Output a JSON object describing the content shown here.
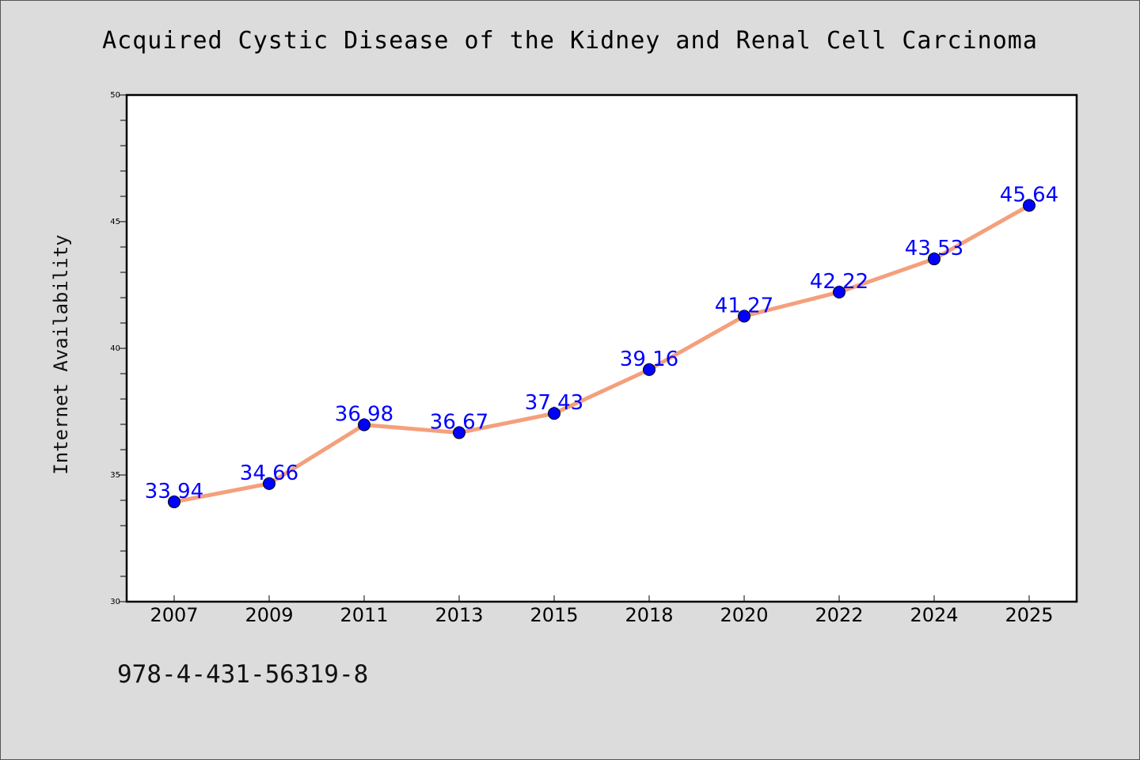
{
  "page": {
    "isbn": "978-4-431-56319-8"
  },
  "colors": {
    "line": "#f4a07c",
    "marker": "#0000ff",
    "data_label": "#0000ff",
    "plot_bg": "#ffffff",
    "page_bg": "#dcdcdc"
  },
  "chart_data": {
    "type": "line",
    "title": "Acquired Cystic Disease of the Kidney and Renal Cell Carcinoma",
    "xlabel": "",
    "ylabel": "Internet Availability",
    "categories": [
      "2007",
      "2009",
      "2011",
      "2013",
      "2015",
      "2018",
      "2020",
      "2022",
      "2024",
      "2025"
    ],
    "series": [
      {
        "values": [
          33.94,
          34.66,
          36.98,
          36.67,
          37.43,
          39.16,
          41.27,
          42.22,
          43.53,
          45.64
        ],
        "labels": [
          "33.94",
          "34.66",
          "36.98",
          "36.67",
          "37.43",
          "39.16",
          "41.27",
          "42.22",
          "43.53",
          "45.64"
        ]
      }
    ],
    "ylim": [
      30,
      50
    ],
    "yticks": [
      30,
      35,
      40,
      45,
      50
    ],
    "grid": false,
    "legend": "none"
  }
}
